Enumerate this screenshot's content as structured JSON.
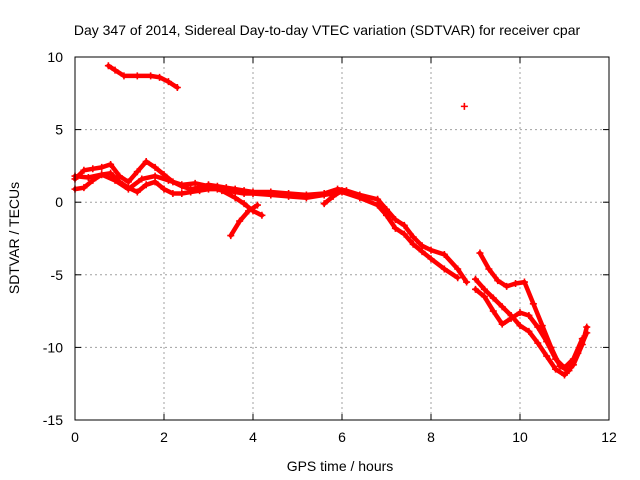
{
  "chart_data": {
    "type": "scatter",
    "title": "Day 347 of 2014, Sidereal Day-to-day VTEC variation (SDTVAR) for receiver cpar",
    "xlabel": "GPS time / hours",
    "ylabel": "SDTVAR / TECUs",
    "xlim": [
      0,
      12
    ],
    "ylim": [
      -15,
      10
    ],
    "x_ticks": [
      0,
      2,
      4,
      6,
      8,
      10,
      12
    ],
    "y_ticks": [
      -15,
      -10,
      -5,
      0,
      5,
      10
    ],
    "x_tick_labels": [
      "0",
      "2",
      "4",
      "6",
      "8",
      "10",
      "12"
    ],
    "y_tick_labels": [
      "-15",
      "-10",
      "-5",
      "0",
      "5",
      "10"
    ],
    "grid": true,
    "marker": "+",
    "color": "#ff0000",
    "series": [
      {
        "name": "arc-main-upper",
        "points": [
          [
            0.0,
            1.6
          ],
          [
            0.2,
            2.2
          ],
          [
            0.4,
            2.3
          ],
          [
            0.6,
            2.4
          ],
          [
            0.8,
            2.6
          ],
          [
            1.0,
            1.8
          ],
          [
            1.2,
            1.4
          ],
          [
            1.4,
            2.1
          ],
          [
            1.6,
            2.8
          ],
          [
            1.8,
            2.4
          ],
          [
            2.0,
            1.9
          ],
          [
            2.2,
            1.4
          ],
          [
            2.4,
            1.1
          ],
          [
            2.6,
            0.9
          ],
          [
            2.8,
            1.0
          ],
          [
            3.0,
            1.2
          ],
          [
            3.2,
            1.1
          ],
          [
            3.4,
            1.0
          ],
          [
            3.6,
            0.9
          ],
          [
            3.8,
            0.8
          ],
          [
            4.0,
            0.7
          ],
          [
            4.4,
            0.7
          ],
          [
            4.8,
            0.6
          ],
          [
            5.2,
            0.5
          ],
          [
            5.6,
            0.6
          ],
          [
            5.9,
            0.9
          ],
          [
            6.1,
            0.8
          ],
          [
            6.4,
            0.5
          ],
          [
            6.8,
            0.2
          ],
          [
            7.0,
            -0.5
          ],
          [
            7.2,
            -1.2
          ],
          [
            7.4,
            -1.6
          ],
          [
            7.6,
            -2.4
          ],
          [
            7.8,
            -3.0
          ],
          [
            8.0,
            -3.3
          ],
          [
            8.3,
            -3.6
          ],
          [
            8.6,
            -4.6
          ],
          [
            8.8,
            -5.5
          ]
        ]
      },
      {
        "name": "arc-main-lower",
        "points": [
          [
            0.0,
            0.9
          ],
          [
            0.2,
            1.0
          ],
          [
            0.4,
            1.5
          ],
          [
            0.6,
            1.9
          ],
          [
            0.8,
            2.0
          ],
          [
            1.0,
            1.4
          ],
          [
            1.2,
            1.0
          ],
          [
            1.4,
            0.7
          ],
          [
            1.6,
            1.2
          ],
          [
            1.8,
            1.4
          ],
          [
            2.0,
            0.9
          ],
          [
            2.2,
            0.6
          ],
          [
            2.4,
            0.6
          ],
          [
            2.6,
            0.7
          ],
          [
            2.8,
            0.8
          ],
          [
            3.0,
            0.9
          ],
          [
            3.2,
            0.9
          ],
          [
            3.4,
            0.8
          ],
          [
            3.6,
            0.7
          ],
          [
            3.8,
            0.6
          ],
          [
            4.0,
            0.6
          ],
          [
            4.4,
            0.5
          ],
          [
            4.8,
            0.4
          ],
          [
            5.2,
            0.3
          ],
          [
            5.6,
            0.5
          ],
          [
            6.0,
            0.7
          ],
          [
            6.4,
            0.3
          ],
          [
            6.8,
            -0.2
          ],
          [
            7.0,
            -0.9
          ],
          [
            7.2,
            -1.8
          ],
          [
            7.4,
            -2.2
          ],
          [
            7.6,
            -2.9
          ],
          [
            7.8,
            -3.4
          ],
          [
            8.0,
            -3.9
          ],
          [
            8.3,
            -4.6
          ],
          [
            8.6,
            -5.2
          ]
        ]
      },
      {
        "name": "arc-middle",
        "points": [
          [
            0.0,
            1.8
          ],
          [
            0.3,
            1.7
          ],
          [
            0.6,
            1.9
          ],
          [
            0.9,
            1.5
          ],
          [
            1.2,
            0.9
          ],
          [
            1.5,
            1.6
          ],
          [
            1.8,
            1.8
          ],
          [
            2.1,
            1.5
          ],
          [
            2.4,
            1.2
          ],
          [
            2.7,
            1.3
          ],
          [
            3.0,
            1.1
          ],
          [
            3.3,
            0.8
          ],
          [
            3.6,
            0.3
          ],
          [
            3.8,
            -0.1
          ],
          [
            4.0,
            -0.6
          ],
          [
            4.2,
            -0.9
          ]
        ]
      },
      {
        "name": "dip-arc",
        "points": [
          [
            3.5,
            -2.3
          ],
          [
            3.7,
            -1.3
          ],
          [
            3.9,
            -0.6
          ],
          [
            4.1,
            -0.2
          ]
        ]
      },
      {
        "name": "short-arc-6h",
        "points": [
          [
            5.6,
            -0.1
          ],
          [
            5.8,
            0.4
          ],
          [
            6.0,
            0.8
          ],
          [
            6.2,
            0.6
          ],
          [
            6.4,
            0.4
          ]
        ]
      },
      {
        "name": "arc-late-a",
        "points": [
          [
            9.0,
            -5.3
          ],
          [
            9.2,
            -6.0
          ],
          [
            9.4,
            -6.6
          ],
          [
            9.6,
            -7.2
          ],
          [
            9.8,
            -7.8
          ],
          [
            10.0,
            -8.5
          ],
          [
            10.2,
            -8.9
          ],
          [
            10.4,
            -9.7
          ],
          [
            10.6,
            -10.6
          ],
          [
            10.8,
            -11.5
          ],
          [
            11.0,
            -11.9
          ],
          [
            11.2,
            -11.2
          ],
          [
            11.4,
            -9.8
          ],
          [
            11.5,
            -8.6
          ]
        ]
      },
      {
        "name": "arc-late-b",
        "points": [
          [
            9.1,
            -3.5
          ],
          [
            9.3,
            -4.6
          ],
          [
            9.5,
            -5.4
          ],
          [
            9.7,
            -5.8
          ],
          [
            9.9,
            -5.6
          ],
          [
            10.1,
            -5.5
          ],
          [
            10.3,
            -7.0
          ],
          [
            10.5,
            -8.5
          ],
          [
            10.7,
            -10.0
          ],
          [
            10.9,
            -11.3
          ],
          [
            11.1,
            -11.6
          ],
          [
            11.3,
            -10.4
          ],
          [
            11.5,
            -9.0
          ]
        ]
      },
      {
        "name": "arc-late-c",
        "points": [
          [
            9.0,
            -6.0
          ],
          [
            9.2,
            -6.5
          ],
          [
            9.4,
            -7.5
          ],
          [
            9.6,
            -8.4
          ],
          [
            9.8,
            -8.0
          ],
          [
            10.0,
            -7.6
          ],
          [
            10.2,
            -7.8
          ],
          [
            10.4,
            -8.6
          ],
          [
            10.6,
            -9.6
          ],
          [
            10.8,
            -10.8
          ],
          [
            11.0,
            -11.4
          ],
          [
            11.2,
            -10.8
          ],
          [
            11.4,
            -9.4
          ]
        ]
      },
      {
        "name": "arc-upper-isolated",
        "points": [
          [
            0.75,
            9.4
          ],
          [
            0.9,
            9.1
          ],
          [
            1.1,
            8.7
          ],
          [
            1.4,
            8.7
          ],
          [
            1.7,
            8.7
          ],
          [
            1.9,
            8.6
          ],
          [
            2.1,
            8.3
          ],
          [
            2.3,
            7.9
          ]
        ]
      },
      {
        "name": "single-point",
        "points": [
          [
            8.75,
            6.6
          ]
        ]
      }
    ]
  }
}
